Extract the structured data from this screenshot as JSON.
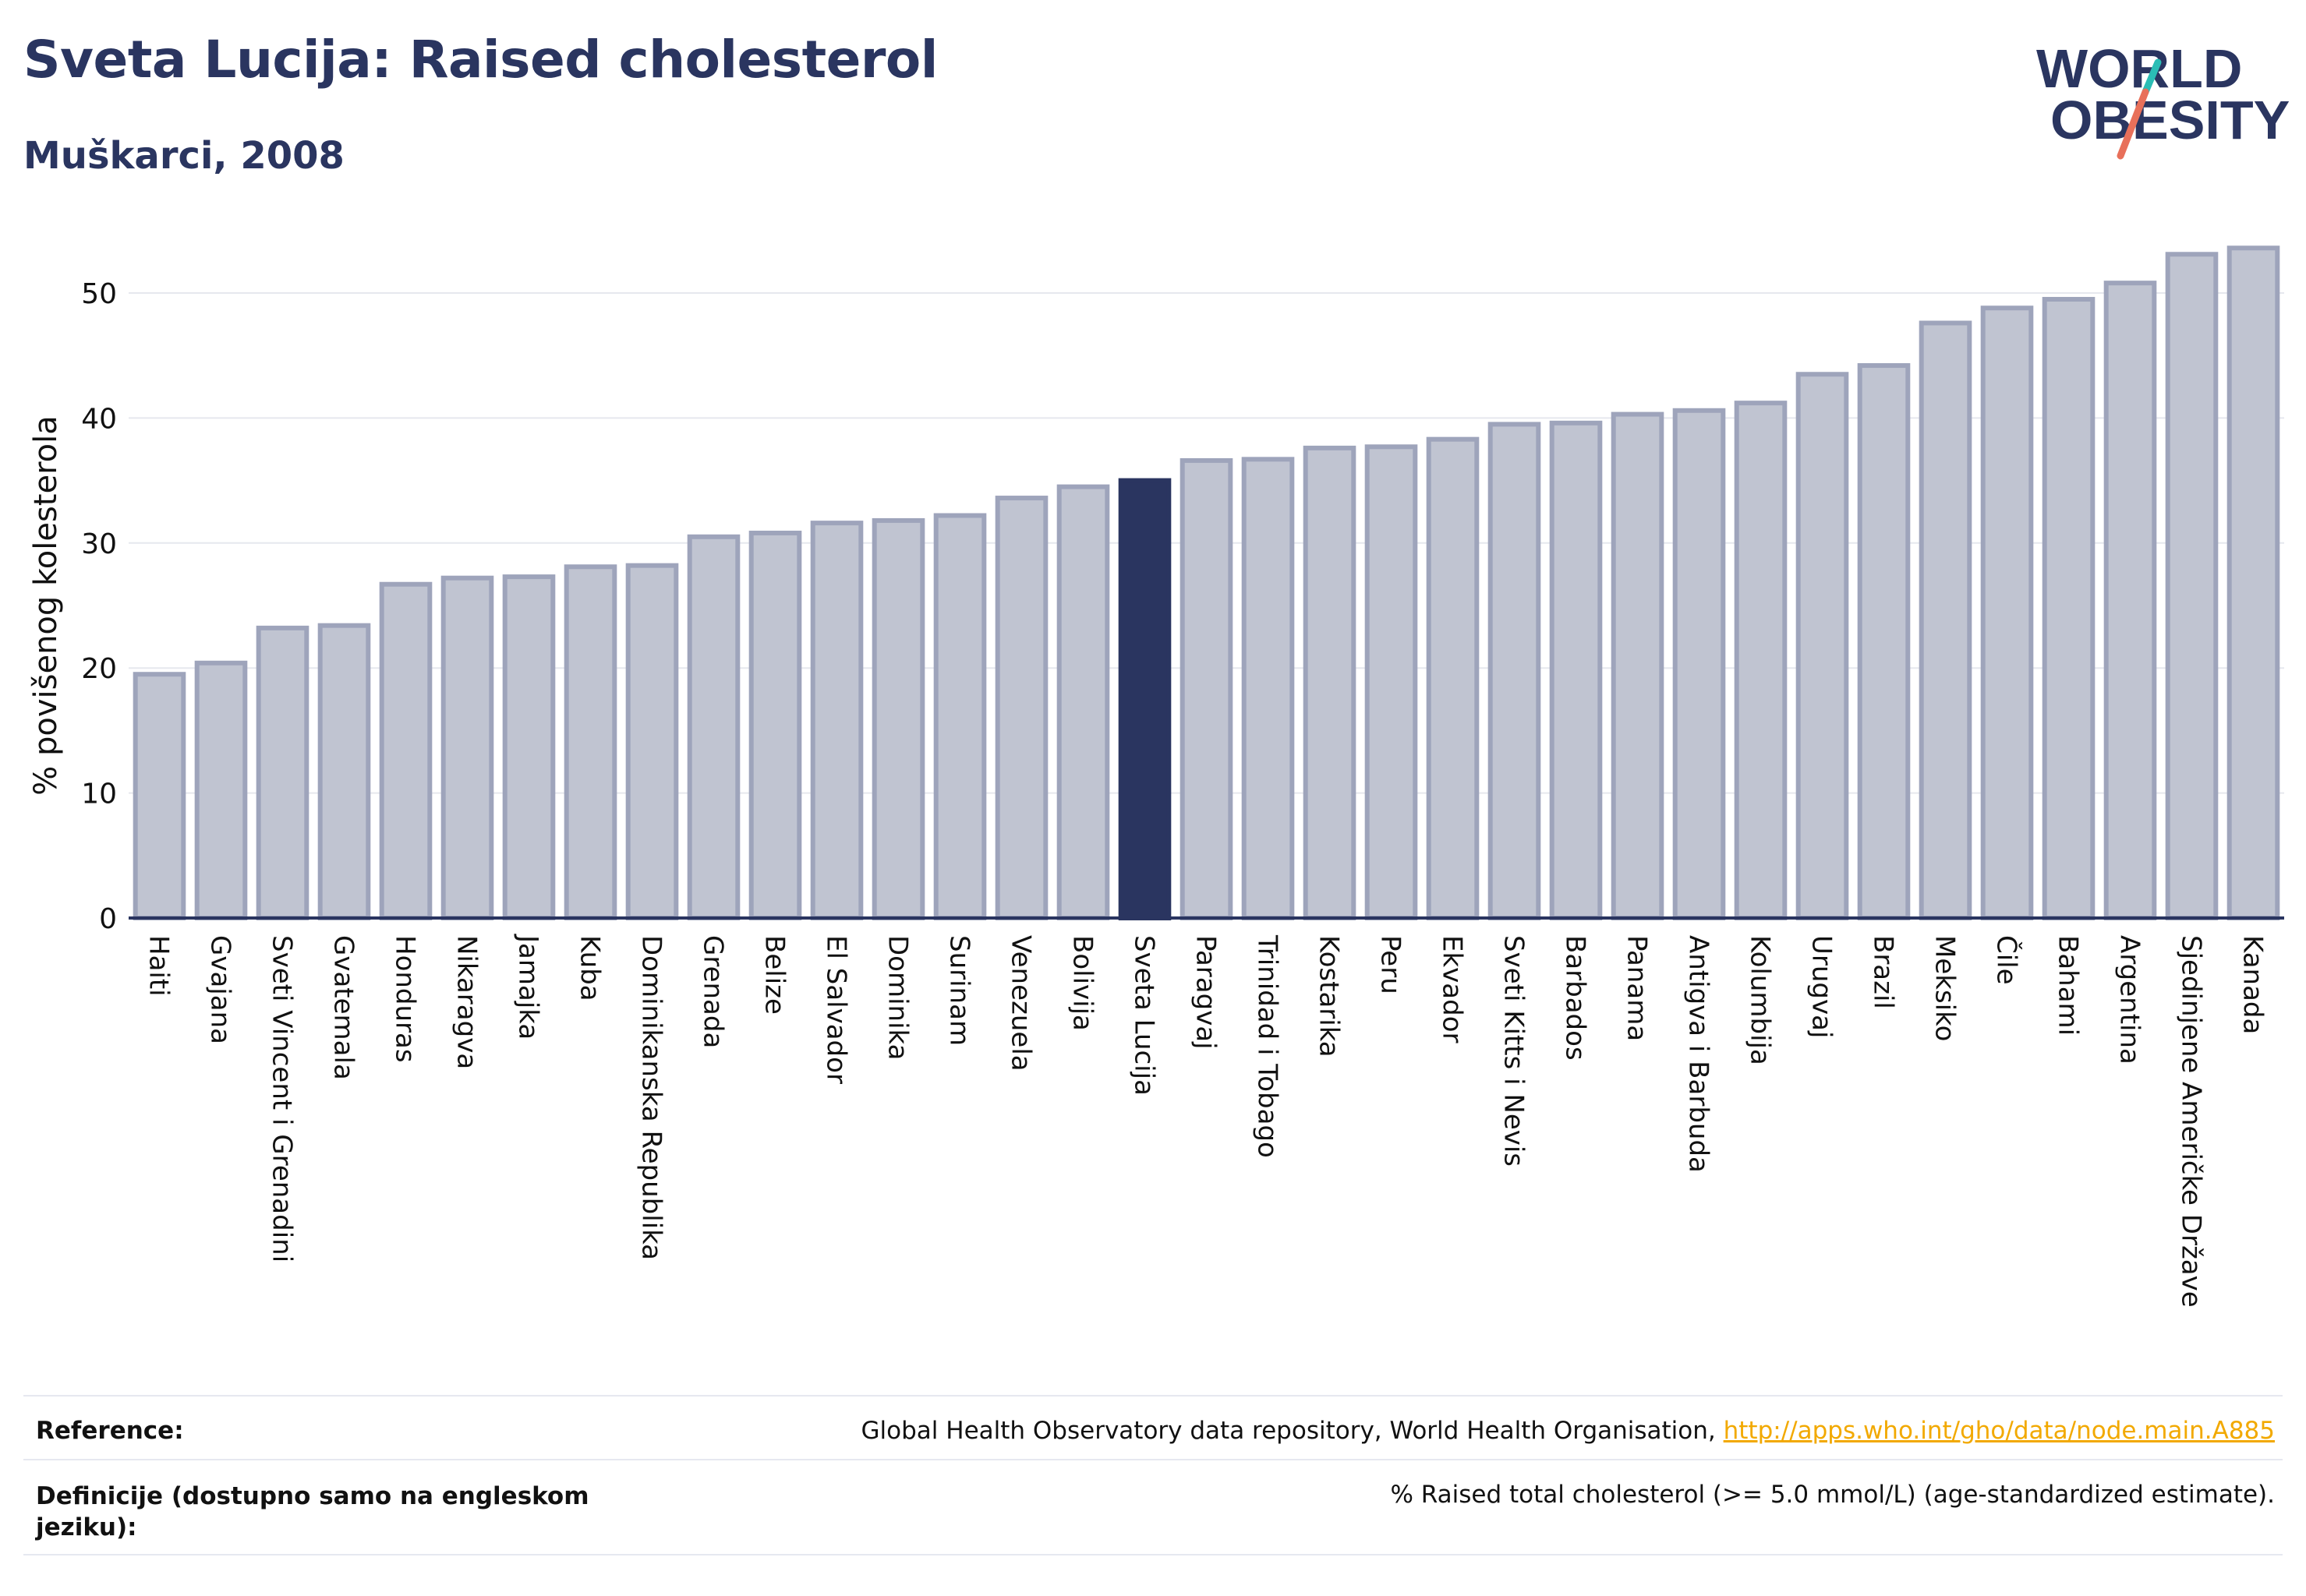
{
  "header": {
    "title": "Sveta Lucija: Raised cholesterol",
    "subtitle": "Muškarci, 2008"
  },
  "logo": {
    "line1": "WORLD",
    "line2": "OBESITY",
    "colors": {
      "text": "#2a3560",
      "slash_teal": "#2bbdb5",
      "slash_coral": "#e8705a"
    }
  },
  "colors": {
    "bar_fill": "#c0c4d1",
    "bar_stroke": "#9ea4bb",
    "highlight": "#2a3560",
    "grid": "#e6e8ee",
    "axis": "#2a3560"
  },
  "chart_data": {
    "type": "bar",
    "ylabel": "% povišenog kolesterola",
    "xlabel": "",
    "ylim": [
      0,
      55
    ],
    "yticks": [
      0,
      10,
      20,
      30,
      40,
      50
    ],
    "grid": true,
    "highlight": "Sveta Lucija",
    "categories": [
      "Haiti",
      "Gvajana",
      "Sveti Vincent i Grenadini",
      "Gvatemala",
      "Honduras",
      "Nikaragva",
      "Jamajka",
      "Kuba",
      "Dominikanska Republika",
      "Grenada",
      "Belize",
      "El Salvador",
      "Dominika",
      "Surinam",
      "Venezuela",
      "Bolivija",
      "Sveta Lucija",
      "Paragvaj",
      "Trinidad i Tobago",
      "Kostarika",
      "Peru",
      "Ekvador",
      "Sveti Kitts i Nevis",
      "Barbados",
      "Panama",
      "Antigva i Barbuda",
      "Kolumbija",
      "Urugvaj",
      "Brazil",
      "Meksiko",
      "Čile",
      "Bahami",
      "Argentina",
      "Sjedinjene Američke Države",
      "Kanada"
    ],
    "values": [
      19.5,
      20.4,
      23.2,
      23.4,
      26.7,
      27.2,
      27.3,
      28.1,
      28.2,
      30.5,
      30.8,
      31.6,
      31.8,
      32.2,
      33.6,
      34.5,
      35.0,
      36.6,
      36.7,
      37.6,
      37.7,
      38.3,
      39.5,
      39.6,
      40.3,
      40.6,
      41.2,
      43.5,
      44.2,
      47.6,
      48.8,
      49.5,
      50.8,
      53.1,
      53.6
    ]
  },
  "footer": {
    "reference_label": "Reference:",
    "reference_text": "Global Health Observatory data repository, World Health Organisation, ",
    "reference_link": "http://apps.who.int/gho/data/node.main.A885",
    "definition_label_line1": "Definicije (dostupno samo na engleskom",
    "definition_label_line2": "jeziku):",
    "definition_text": "% Raised total cholesterol (>= 5.0 mmol/L) (age-standardized estimate)."
  }
}
